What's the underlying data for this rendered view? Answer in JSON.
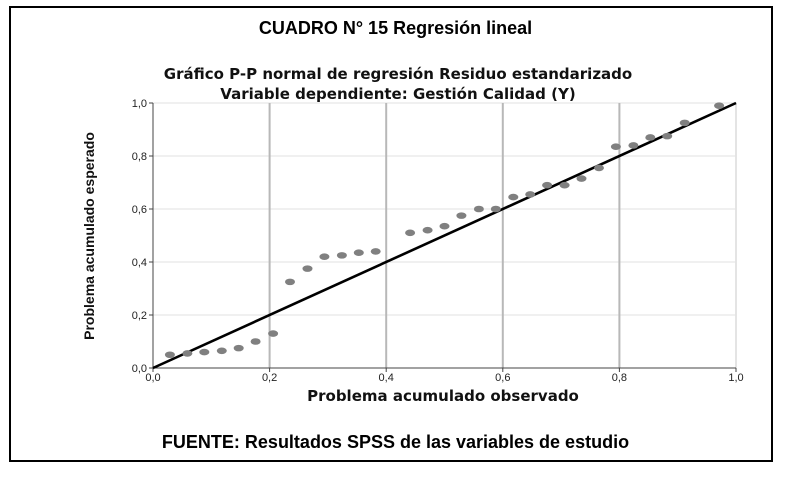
{
  "caption": {
    "title": "CUADRO N° 15 Regresión lineal",
    "source": "FUENTE: Resultados SPSS de las variables de estudio"
  },
  "chart_data": {
    "type": "scatter",
    "title": "Gráfico P-P normal de regresión Residuo estandarizado",
    "subtitle": "Variable dependiente: Gestión Calidad (Y)",
    "xlabel": "Problema acumulado observado",
    "ylabel": "Problema acumulado esperado",
    "xlim": [
      0,
      1
    ],
    "ylim": [
      0,
      1
    ],
    "xticks": [
      "0,0",
      "0,2",
      "0,4",
      "0,6",
      "0,8",
      "1,0"
    ],
    "yticks": [
      "0,0",
      "0,2",
      "0,4",
      "0,6",
      "0,8",
      "1,0"
    ],
    "vertical_gridlines_at": [
      0.2,
      0.4,
      0.6,
      0.8
    ],
    "reference_line": [
      [
        0,
        0
      ],
      [
        1,
        1
      ]
    ],
    "points": [
      [
        0.029,
        0.05
      ],
      [
        0.059,
        0.055
      ],
      [
        0.088,
        0.06
      ],
      [
        0.118,
        0.065
      ],
      [
        0.147,
        0.075
      ],
      [
        0.176,
        0.1
      ],
      [
        0.206,
        0.13
      ],
      [
        0.235,
        0.325
      ],
      [
        0.265,
        0.375
      ],
      [
        0.294,
        0.42
      ],
      [
        0.324,
        0.425
      ],
      [
        0.353,
        0.435
      ],
      [
        0.382,
        0.44
      ],
      [
        0.441,
        0.51
      ],
      [
        0.471,
        0.52
      ],
      [
        0.5,
        0.535
      ],
      [
        0.529,
        0.575
      ],
      [
        0.559,
        0.6
      ],
      [
        0.588,
        0.6
      ],
      [
        0.618,
        0.645
      ],
      [
        0.647,
        0.655
      ],
      [
        0.676,
        0.69
      ],
      [
        0.706,
        0.69
      ],
      [
        0.735,
        0.715
      ],
      [
        0.765,
        0.755
      ],
      [
        0.794,
        0.835
      ],
      [
        0.824,
        0.84
      ],
      [
        0.853,
        0.87
      ],
      [
        0.882,
        0.875
      ],
      [
        0.912,
        0.925
      ],
      [
        0.971,
        0.99
      ]
    ],
    "colors": {
      "points": "#808080",
      "grid": "#b8b8b8",
      "line": "#000000"
    }
  }
}
